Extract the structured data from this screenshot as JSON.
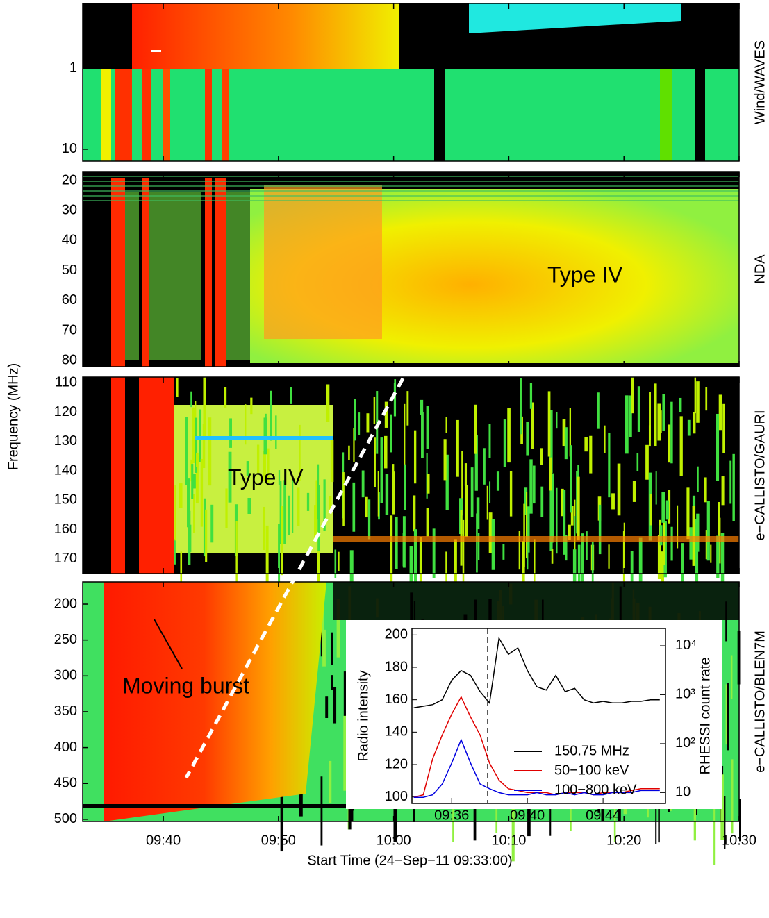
{
  "chart_data": [
    {
      "type": "spectrogram",
      "label": "Wind/WAVES",
      "xlim": [
        33,
        90
      ],
      "ylim": [
        0.16,
        14
      ],
      "yticks": [
        1,
        10
      ],
      "log_scale": true,
      "y_inverted": true
    },
    {
      "type": "spectrogram",
      "label": "NDA",
      "annotation": "Type IV",
      "xlim": [
        33,
        90
      ],
      "ylim": [
        17,
        82
      ],
      "yticks": [
        20,
        30,
        40,
        50,
        60,
        70,
        80
      ],
      "y_inverted": true
    },
    {
      "type": "spectrogram",
      "label": "e−CALLISTO/GAURI",
      "annotation": "Type IV",
      "ylabel": "Frequency (MHz)",
      "xlim": [
        33,
        90
      ],
      "ylim": [
        108,
        175
      ],
      "yticks": [
        110,
        120,
        130,
        140,
        150,
        160,
        170
      ],
      "y_inverted": true
    },
    {
      "type": "spectrogram",
      "label": "e−CALLISTO/BLEN7M",
      "annotation": "Moving burst",
      "xlabel": "Start Time (24−Sep−11 09:33:00)",
      "xlim": [
        33,
        90
      ],
      "xticks": [
        {
          "value": 40,
          "label": "09:40"
        },
        {
          "value": 50,
          "label": "09:50"
        },
        {
          "value": 60,
          "label": "10:00"
        },
        {
          "value": 70,
          "label": "10:10"
        },
        {
          "value": 80,
          "label": "10:20"
        },
        {
          "value": 90,
          "label": "10:30"
        }
      ],
      "ylim": [
        169,
        503
      ],
      "yticks": [
        200,
        250,
        300,
        350,
        400,
        450,
        500
      ],
      "y_inverted": true
    },
    {
      "type": "line",
      "xlim": [
        33.9,
        47.3
      ],
      "xticks": [
        {
          "value": 36,
          "label": "09:36"
        },
        {
          "value": 40,
          "label": "09:40"
        },
        {
          "value": 44,
          "label": "09:44"
        }
      ],
      "ylabel": "Radio intensity",
      "ylim": [
        96,
        204
      ],
      "yticks": [
        100,
        120,
        140,
        160,
        180,
        200
      ],
      "y2label": "RHESSI count rate",
      "y2lim": [
        6,
        22600
      ],
      "y2_log_scale": true,
      "y2ticks": [
        10,
        {
          "value": 100,
          "label": "10²"
        },
        {
          "value": 1000,
          "label": "10³"
        },
        {
          "value": 10000,
          "label": "10⁴"
        }
      ],
      "vline": 37.9,
      "x": [
        34,
        34.5,
        35,
        35.5,
        36,
        36.5,
        37,
        37.5,
        38,
        38.5,
        39,
        39.5,
        40,
        40.5,
        41,
        41.5,
        42,
        42.5,
        43,
        43.5,
        44,
        44.5,
        45,
        45.5,
        46,
        46.5,
        47
      ],
      "series": [
        {
          "name": "150.75 MHz",
          "color": "#000000",
          "values": [
            155,
            156,
            157,
            160,
            172,
            178,
            175,
            165,
            158,
            198,
            188,
            192,
            178,
            168,
            166,
            175,
            165,
            167,
            160,
            158,
            159,
            158,
            158,
            159,
            159,
            160,
            160
          ]
        },
        {
          "name": "50−100 keV",
          "color": "#e00000",
          "axis": "y2",
          "values": [
            8,
            9,
            50,
            150,
            400,
            900,
            350,
            150,
            40,
            18,
            12,
            11,
            10,
            10,
            10,
            9,
            10,
            10,
            10,
            9,
            10,
            10,
            10,
            11,
            12,
            12,
            12
          ]
        },
        {
          "name": "100−800 keV",
          "color": "#0000e0",
          "axis": "y2",
          "values": [
            8,
            8,
            9,
            15,
            40,
            120,
            40,
            15,
            12,
            10,
            9,
            9,
            9,
            10,
            9,
            9,
            10,
            9,
            10,
            9,
            9,
            10,
            10,
            10,
            11,
            11,
            11
          ]
        }
      ]
    }
  ]
}
